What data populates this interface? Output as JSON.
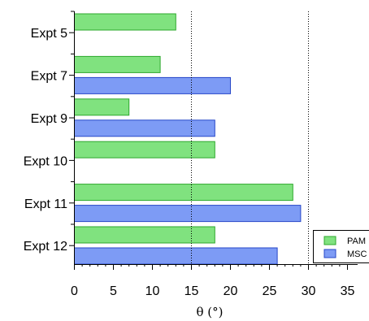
{
  "chart_data": {
    "type": "bar",
    "orientation": "horizontal",
    "categories": [
      "Expt 5",
      "Expt 7",
      "Expt 9",
      "Expt 10",
      "Expt 11",
      "Expt 12"
    ],
    "series": [
      {
        "name": "PAM",
        "values": [
          13,
          11,
          7,
          18,
          28,
          18
        ],
        "color": "#80e27f",
        "stroke": "#2ea82e"
      },
      {
        "name": "MSC",
        "values": [
          null,
          20,
          18,
          null,
          29,
          26
        ],
        "color": "#7d9bf5",
        "stroke": "#2747c8"
      }
    ],
    "xlabel": "θ (°)",
    "xlim": [
      0,
      35
    ],
    "xticks": [
      0,
      5,
      10,
      15,
      20,
      25,
      30,
      35
    ],
    "reference_lines": [
      15,
      30
    ],
    "grid": false,
    "legend_position": "bottom-right"
  }
}
